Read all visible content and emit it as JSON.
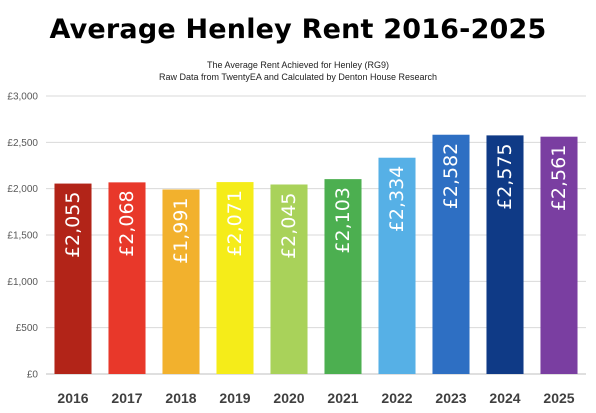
{
  "header": {
    "title": "Average Henley Rent 2016-2025",
    "subtitle_1": "The Average Rent Achieved for Henley (RG9)",
    "subtitle_2": "Raw Data from TwentyEA and Calculated by Denton House Research"
  },
  "chart_data": {
    "type": "bar",
    "title": "Average Henley Rent 2016-2025",
    "subtitle": "The Average Rent Achieved for Henley (RG9) / Raw Data from TwentyEA and Calculated by Denton House Research",
    "xlabel": "",
    "ylabel": "",
    "categories": [
      "2016",
      "2017",
      "2018",
      "2019",
      "2020",
      "2021",
      "2022",
      "2023",
      "2024",
      "2025"
    ],
    "values": [
      2055,
      2068,
      1991,
      2071,
      2045,
      2103,
      2334,
      2582,
      2575,
      2561
    ],
    "data_labels": [
      "£2,055",
      "£2,068",
      "£1,991",
      "£2,071",
      "£2,045",
      "£2,103",
      "£2,334",
      "£2,582",
      "£2,575",
      "£2,561"
    ],
    "bar_colors": [
      "#b22418",
      "#e8382a",
      "#f2b12d",
      "#f5ec19",
      "#a9d25a",
      "#4caf50",
      "#56b0e6",
      "#2e6fc3",
      "#0f3a86",
      "#7a3ea1"
    ],
    "ylim": [
      0,
      3000
    ],
    "yticks": [
      0,
      500,
      1000,
      1500,
      2000,
      2500,
      3000
    ],
    "ytick_labels": [
      "£0",
      "£500",
      "£1,000",
      "£1,500",
      "£2,000",
      "£2,500",
      "£3,000"
    ],
    "grid": true,
    "legend": "none"
  }
}
